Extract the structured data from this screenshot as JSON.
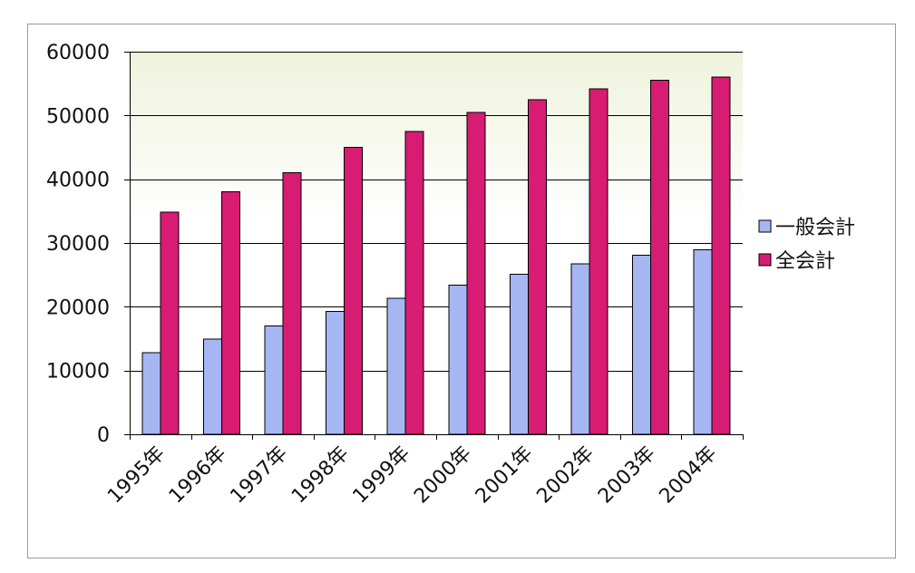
{
  "chart_data": {
    "type": "bar",
    "title": "",
    "xlabel": "",
    "ylabel": "",
    "categories": [
      "1995年",
      "1996年",
      "1997年",
      "1998年",
      "1999年",
      "2000年",
      "2001年",
      "2002年",
      "2003年",
      "2004年"
    ],
    "series": [
      {
        "name": "一般会計",
        "color": "#a6b6f2",
        "values": [
          12800,
          14900,
          17000,
          19300,
          21300,
          23400,
          25100,
          26700,
          28100,
          28900
        ]
      },
      {
        "name": "全会計",
        "color": "#d81b73",
        "values": [
          34800,
          38000,
          41000,
          45000,
          47500,
          50500,
          52500,
          54200,
          55500,
          56000
        ]
      }
    ],
    "ylim": [
      0,
      60000
    ],
    "yticks": [
      "0",
      "10000",
      "20000",
      "30000",
      "40000",
      "50000",
      "60000"
    ],
    "grid": true,
    "legend_position": "right",
    "plot_background": "gradient-light-green-to-white"
  }
}
